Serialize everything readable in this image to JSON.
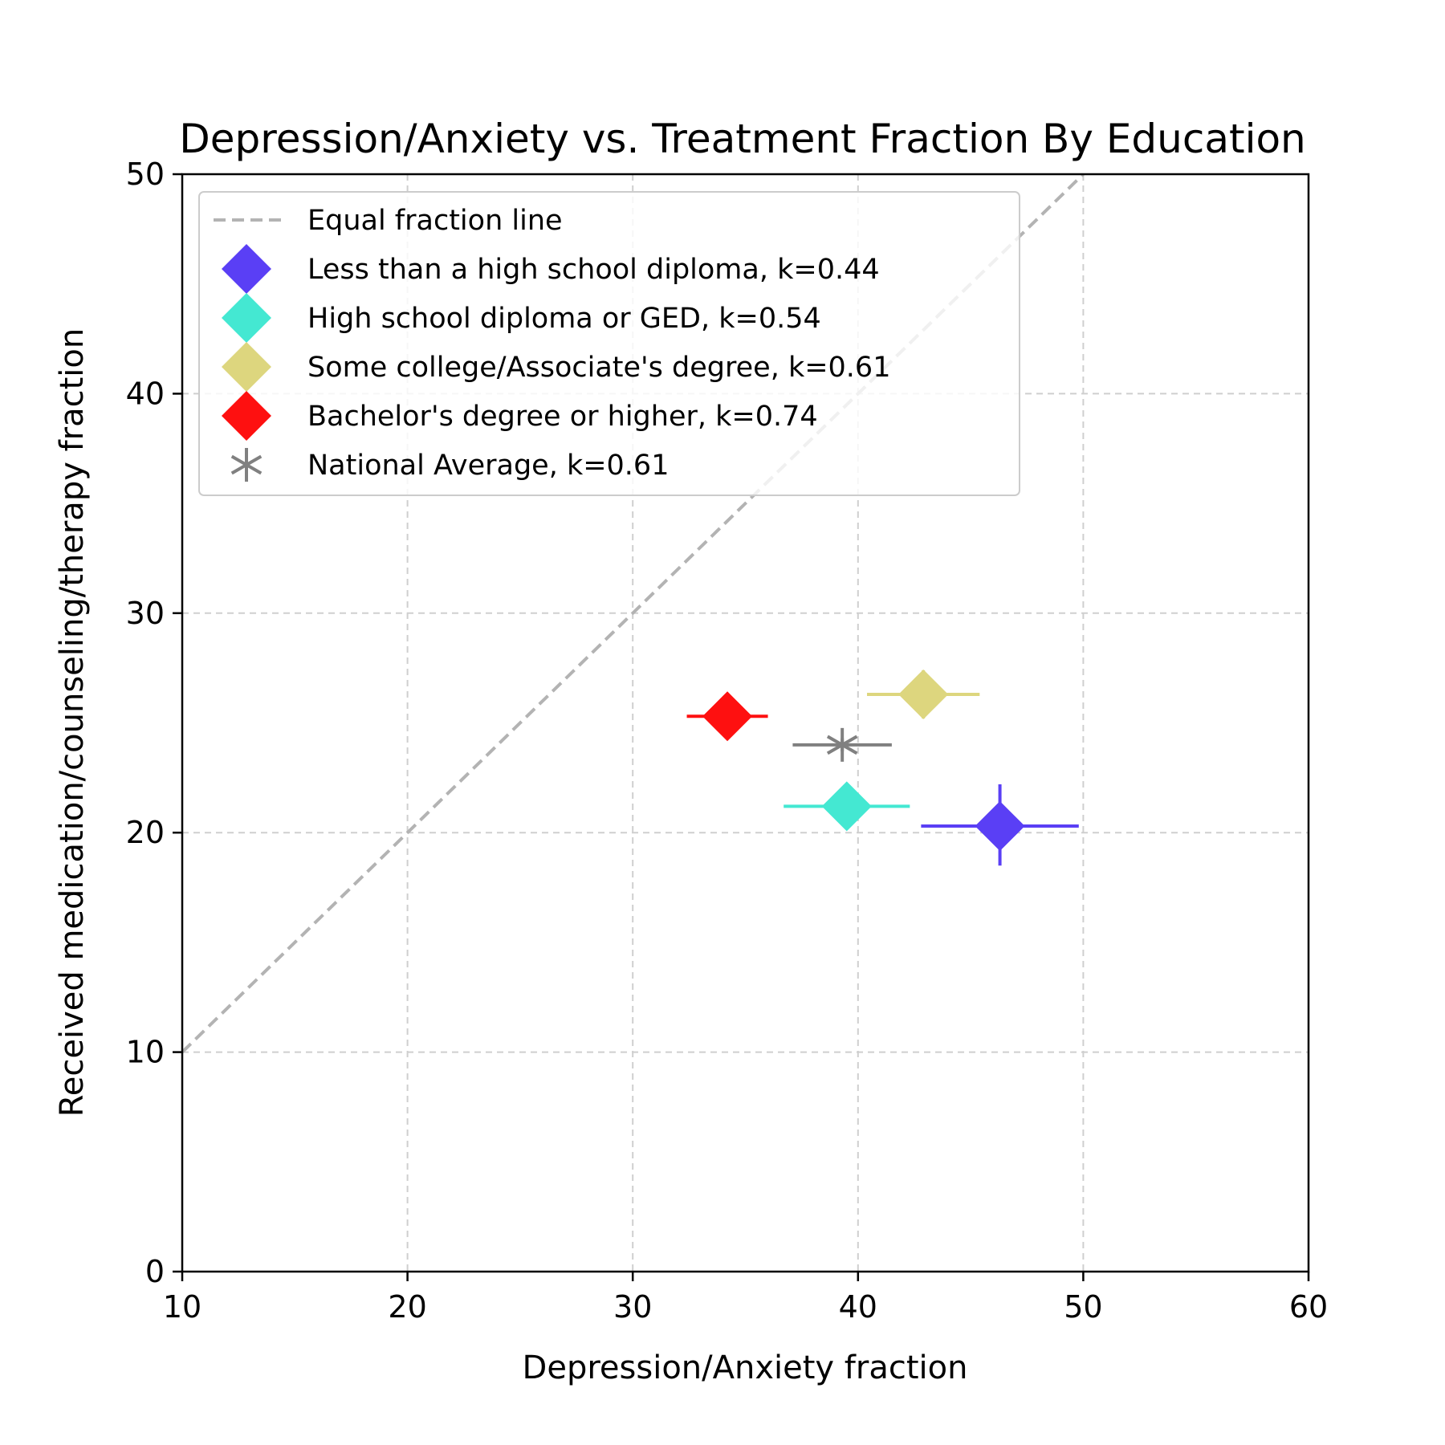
{
  "chart_data": {
    "type": "scatter",
    "title": "Depression/Anxiety vs. Treatment Fraction By Education",
    "xlabel": "Depression/Anxiety fraction",
    "ylabel": "Received medication/counseling/therapy fraction",
    "xlim": [
      10,
      60
    ],
    "ylim": [
      0,
      50
    ],
    "xticks": [
      "10",
      "20",
      "30",
      "40",
      "50",
      "60"
    ],
    "yticks": [
      "0",
      "10",
      "20",
      "30",
      "40",
      "50"
    ],
    "grid": true,
    "legend_position": "upper-left",
    "reference_line": {
      "name": "Equal fraction line",
      "x": [
        10,
        50
      ],
      "y": [
        10,
        50
      ],
      "color": "#b3b3b3"
    },
    "series": [
      {
        "name": "Less than a high school diploma, k=0.44",
        "x": 46.3,
        "y": 20.3,
        "xerr": [
          3.5,
          3.5
        ],
        "yerr": [
          1.8,
          1.9
        ],
        "color": "#5a3ff5",
        "marker": "diamond"
      },
      {
        "name": "High school diploma or GED, k=0.54",
        "x": 39.5,
        "y": 21.2,
        "xerr": [
          2.8,
          2.8
        ],
        "yerr": [
          0.3,
          0.3
        ],
        "color": "#44e8d2",
        "marker": "diamond"
      },
      {
        "name": "Some college/Associate's degree, k=0.61",
        "x": 42.9,
        "y": 26.3,
        "xerr": [
          2.5,
          2.5
        ],
        "yerr": [
          1.1,
          1.1
        ],
        "color": "#ddd67e",
        "marker": "diamond"
      },
      {
        "name": "Bachelor's degree or higher, k=0.74",
        "x": 34.2,
        "y": 25.3,
        "xerr": [
          1.8,
          1.8
        ],
        "yerr": [
          0.2,
          0.2
        ],
        "color": "#fe1010",
        "marker": "diamond"
      },
      {
        "name": "National Average, k=0.61",
        "x": 39.3,
        "y": 24.0,
        "xerr": [
          2.2,
          2.2
        ],
        "yerr": [
          0.3,
          0.3
        ],
        "color": "#808080",
        "marker": "asterisk"
      }
    ]
  }
}
